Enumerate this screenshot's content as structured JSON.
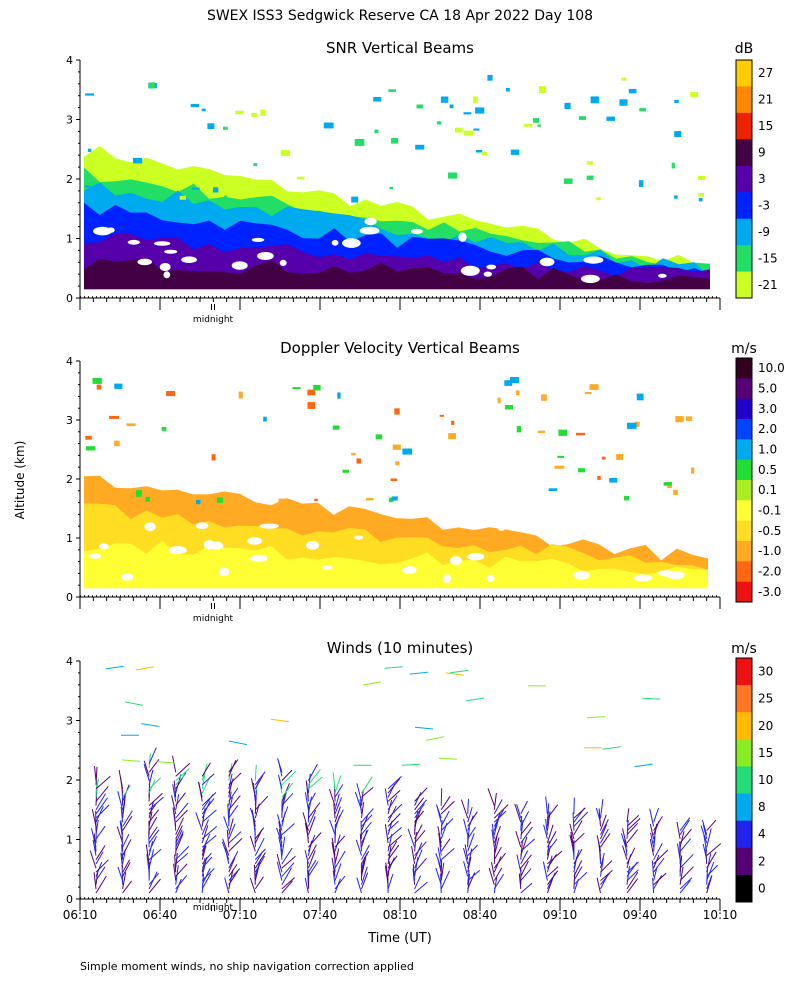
{
  "title": "SWEX ISS3 Sedgwick Reserve CA  18 Apr 2022 Day 108",
  "footnote": "Simple moment winds, no ship navigation correction applied",
  "shared_ylabel": "Altitude (km)",
  "midnight_label": "midnight",
  "chart_data": [
    {
      "type": "heatmap",
      "title": "SNR Vertical Beams",
      "ylim": [
        0,
        4
      ],
      "yticks": [
        "0",
        "1",
        "2",
        "3",
        "4"
      ],
      "colorbar": {
        "unit": "dB",
        "labels": [
          "27",
          "21",
          "15",
          "9",
          "3",
          "-3",
          "-9",
          "-15",
          "-21"
        ],
        "colors": [
          "#ffcc00",
          "#ff8800",
          "#ee2200",
          "#440044",
          "#5500aa",
          "#0022ff",
          "#00aaee",
          "#22dd66",
          "#ccff22"
        ]
      },
      "layers": [
        {
          "top": 2.5,
          "color": "#ccff22"
        },
        {
          "top": 2.1,
          "color": "#22dd66"
        },
        {
          "top": 1.9,
          "color": "#00aaee"
        },
        {
          "top": 1.5,
          "color": "#0022ff"
        },
        {
          "top": 1.0,
          "color": "#5500aa"
        },
        {
          "top": 0.6,
          "color": "#440044"
        }
      ]
    },
    {
      "type": "heatmap",
      "title": "Doppler Velocity Vertical Beams",
      "ylim": [
        0,
        4
      ],
      "yticks": [
        "0",
        "1",
        "2",
        "3",
        "4"
      ],
      "colorbar": {
        "unit": "m/s",
        "labels": [
          "10.0",
          "5.0",
          "3.0",
          "2.0",
          "1.0",
          "0.5",
          "0.1",
          "-0.1",
          "-0.5",
          "-1.0",
          "-2.0",
          "-3.0"
        ],
        "colors": [
          "#330022",
          "#550077",
          "#2200cc",
          "#0044ff",
          "#00aaee",
          "#22dd33",
          "#aaee22",
          "#ffff33",
          "#ffdd22",
          "#ffaa22",
          "#ff6611",
          "#ee1111"
        ]
      },
      "layers": [
        {
          "top": 2.0,
          "color": "#ffaa22"
        },
        {
          "top": 1.5,
          "color": "#ffdd22"
        },
        {
          "top": 0.9,
          "color": "#ffff33"
        }
      ]
    },
    {
      "type": "scatter",
      "title": "Winds (10 minutes)",
      "ylim": [
        0,
        4
      ],
      "yticks": [
        "0",
        "1",
        "2",
        "3",
        "4"
      ],
      "xlabel": "Time (UT)",
      "xticks": [
        "06:10",
        "06:40",
        "07:10",
        "07:40",
        "08:10",
        "08:40",
        "09:10",
        "09:40",
        "10:10"
      ],
      "colorbar": {
        "unit": "m/s",
        "labels": [
          "30",
          "25",
          "20",
          "15",
          "10",
          "8",
          "4",
          "2",
          "0"
        ],
        "colors": [
          "#ee1111",
          "#ff7722",
          "#ffbb00",
          "#88ee22",
          "#22dd77",
          "#00aaee",
          "#2222ee",
          "#550077",
          "#000000"
        ]
      },
      "profile_times": [
        "06:10",
        "06:20",
        "06:30",
        "06:40",
        "06:50",
        "07:00",
        "07:10",
        "07:20",
        "07:30",
        "07:40",
        "07:50",
        "08:00",
        "08:10",
        "08:20",
        "08:30",
        "08:40",
        "08:50",
        "09:00",
        "09:10",
        "09:20",
        "09:30",
        "09:40",
        "09:50",
        "10:00"
      ],
      "profile_tops_km": [
        2.0,
        1.9,
        2.3,
        2.2,
        2.1,
        2.2,
        2.0,
        2.2,
        2.0,
        1.9,
        1.8,
        1.9,
        1.7,
        1.6,
        1.5,
        1.6,
        1.5,
        1.5,
        1.5,
        1.4,
        1.3,
        1.3,
        1.2,
        1.2
      ]
    }
  ]
}
